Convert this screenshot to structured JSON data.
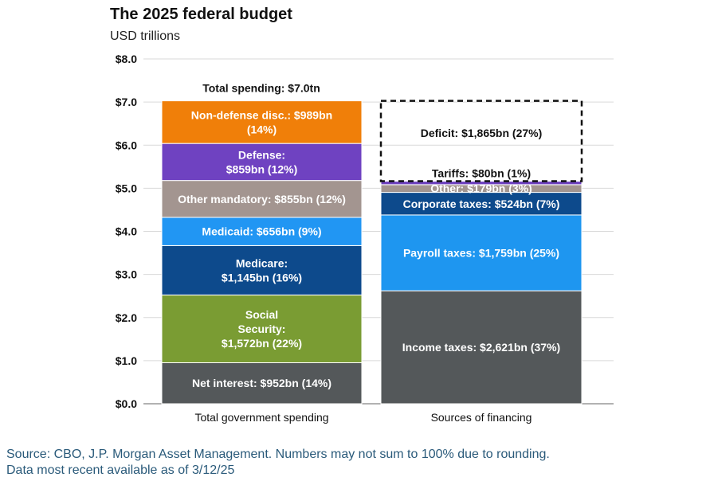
{
  "chart_data": {
    "type": "stacked-bar",
    "title": "The 2025 federal budget",
    "subtitle": "USD trillions",
    "ylim": [
      0,
      8
    ],
    "yticks": [
      "$0.0",
      "$1.0",
      "$2.0",
      "$3.0",
      "$4.0",
      "$5.0",
      "$6.0",
      "$7.0",
      "$8.0"
    ],
    "grid": true,
    "categories": [
      "Total government spending",
      "Sources of financing"
    ],
    "annotation": "Total spending: $7.0tn",
    "stacks": [
      [
        {
          "label": "Net interest: $952bn (14%)",
          "value": 0.952,
          "color": "#54585a"
        },
        {
          "label": "Social\nSecurity:\n$1,572bn (22%)",
          "value": 1.572,
          "color": "#7a9c33"
        },
        {
          "label": "Medicare:\n$1,145bn (16%)",
          "value": 1.145,
          "color": "#0d4a8c"
        },
        {
          "label": "Medicaid: $656bn (9%)",
          "value": 0.656,
          "color": "#2196f3"
        },
        {
          "label": "Other mandatory: $855bn (12%)",
          "value": 0.855,
          "color": "#a39590"
        },
        {
          "label": "Defense:\n$859bn (12%)",
          "value": 0.859,
          "color": "#6f42c1"
        },
        {
          "label": "Non-defense disc.: $989bn\n(14%)",
          "value": 0.989,
          "color": "#f07f09"
        }
      ],
      [
        {
          "label": "Income taxes: $2,621bn (37%)",
          "value": 2.621,
          "color": "#54585a"
        },
        {
          "label": "Payroll taxes: $1,759bn (25%)",
          "value": 1.759,
          "color": "#1e96f0"
        },
        {
          "label": "Corporate taxes: $524bn (7%)",
          "value": 0.524,
          "color": "#0d4a8c"
        },
        {
          "label": "Other: $179bn (3%)",
          "value": 0.179,
          "color": "#a39590"
        },
        {
          "label": "Tariffs: $80bn (1%)",
          "value": 0.08,
          "color": "#6f42c1"
        },
        {
          "label": "Deficit: $1,865bn (27%)",
          "value": 1.865,
          "color": "none",
          "dashed": true
        }
      ]
    ]
  },
  "footer": {
    "source": "Source: CBO, J.P. Morgan Asset Management. Numbers may not sum to 100% due to rounding.",
    "date": "Data most recent available as of 3/12/25"
  }
}
